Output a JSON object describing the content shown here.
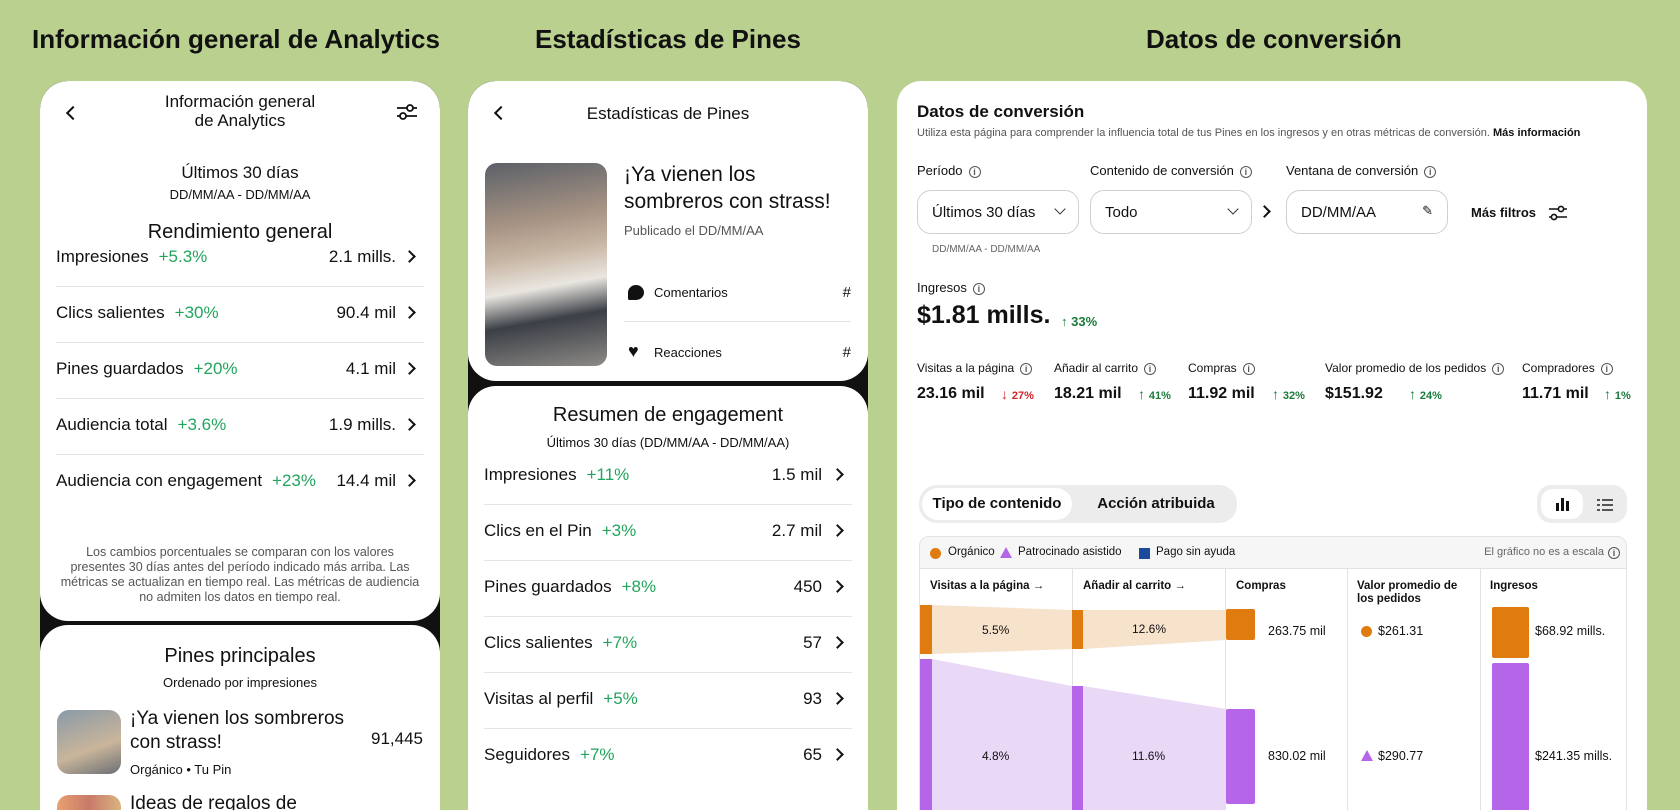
{
  "headers": {
    "analytics": "Información general de Analytics",
    "pins": "Estadísticas de Pines",
    "conversion": "Datos de conversión"
  },
  "analytics": {
    "title_line1": "Información general",
    "title_line2": "de Analytics",
    "period": "Últimos 30 días",
    "date_range": "DD/MM/AA - DD/MM/AA",
    "section": "Rendimiento general",
    "metrics": [
      {
        "label": "Impresiones",
        "pct": "+5.3%",
        "value": "2.1 mills."
      },
      {
        "label": "Clics salientes",
        "pct": "+30%",
        "value": "90.4 mil"
      },
      {
        "label": "Pines guardados",
        "pct": "+20%",
        "value": "4.1 mil"
      },
      {
        "label": "Audiencia total",
        "pct": "+3.6%",
        "value": "1.9 mills."
      },
      {
        "label": "Audiencia con engagement",
        "pct": "+23%",
        "value": "14.4 mil"
      }
    ],
    "footnote": "Los cambios porcentuales se comparan con los valores presentes 30 días antes del período indicado más arriba. Las métricas se actualizan en tiempo real. Las métricas de audiencia no admiten los datos en tiempo real.",
    "top_pins_title": "Pines principales",
    "top_pins_sub": "Ordenado por impresiones",
    "top_pin_1_title": "¡Ya vienen los sombreros con strass!",
    "top_pin_1_meta": "Orgánico • Tu Pin",
    "top_pin_1_value": "91,445",
    "top_pin_2_title": "Ideas de regalos de"
  },
  "pins": {
    "title": "Estadísticas de Pines",
    "pin_title": "¡Ya vienen los sombreros con strass!",
    "published": "Publicado el DD/MM/AA",
    "comments": "Comentarios",
    "comments_value": "#",
    "reactions": "Reacciones",
    "reactions_value": "#",
    "engagement_title": "Resumen de engagement",
    "engagement_sub": "Últimos 30 días (DD/MM/AA - DD/MM/AA)",
    "metrics": [
      {
        "label": "Impresiones",
        "pct": "+11%",
        "value": "1.5 mil"
      },
      {
        "label": "Clics en el Pin",
        "pct": "+3%",
        "value": "2.7 mil"
      },
      {
        "label": "Pines guardados",
        "pct": "+8%",
        "value": "450"
      },
      {
        "label": "Clics salientes",
        "pct": "+7%",
        "value": "57"
      },
      {
        "label": "Visitas al perfil",
        "pct": "+5%",
        "value": "93"
      },
      {
        "label": "Seguidores",
        "pct": "+7%",
        "value": "65"
      }
    ]
  },
  "conversion": {
    "title": "Datos de conversión",
    "desc": "Utiliza esta página para comprender la influencia total de tus Pines en los ingresos y en otras métricas de conversión.",
    "more_info": "Más información",
    "period_label": "Período",
    "content_label": "Contenido de conversión",
    "window_label": "Ventana de conversión",
    "period_value": "Últimos 30 días",
    "content_value": "Todo",
    "window_value": "DD/MM/AA",
    "more_filters": "Más filtros",
    "date_range": "DD/MM/AA - DD/MM/AA",
    "revenue_label": "Ingresos",
    "revenue_value": "$1.81 mills.",
    "revenue_change": "33%",
    "kpis": [
      {
        "label": "Visitas a la página",
        "value": "23.16 mil",
        "change": "27%",
        "dir": "down"
      },
      {
        "label": "Añadir al carrito",
        "value": "18.21 mil",
        "change": "41%",
        "dir": "up"
      },
      {
        "label": "Compras",
        "value": "11.92 mil",
        "change": "32%",
        "dir": "up"
      },
      {
        "label": "Valor promedio de los pedidos",
        "value": "$151.92",
        "change": "24%",
        "dir": "up"
      },
      {
        "label": "Compradores",
        "value": "11.71 mil",
        "change": "1%",
        "dir": "up"
      }
    ],
    "tab_content": "Tipo de contenido",
    "tab_action": "Acción atribuida",
    "legend": {
      "organic": "Orgánico",
      "assisted": "Patrocinado asistido",
      "unassisted": "Pago sin ayuda"
    },
    "scale_note": "El gráfico no es a escala",
    "columns": [
      "Visitas a la página",
      "Añadir al carrito",
      "Compras",
      "Valor promedio de los pedidos",
      "Ingresos"
    ],
    "organic": {
      "visits_pct": "5.5%",
      "cart_pct": "12.6%",
      "purchases": "263.75 mil",
      "aov": "$261.31",
      "revenue": "$68.92 mills."
    },
    "assisted": {
      "visits_pct": "4.8%",
      "cart_pct": "11.6%",
      "purchases": "830.02 mil",
      "aov": "$290.77",
      "revenue": "$241.35 mills."
    },
    "colors": {
      "organic": "#e07b10",
      "organic_light": "#f7e2cc",
      "assisted": "#b565e8",
      "assisted_light": "#ead8f7",
      "unassisted": "#1c4a9c"
    }
  }
}
